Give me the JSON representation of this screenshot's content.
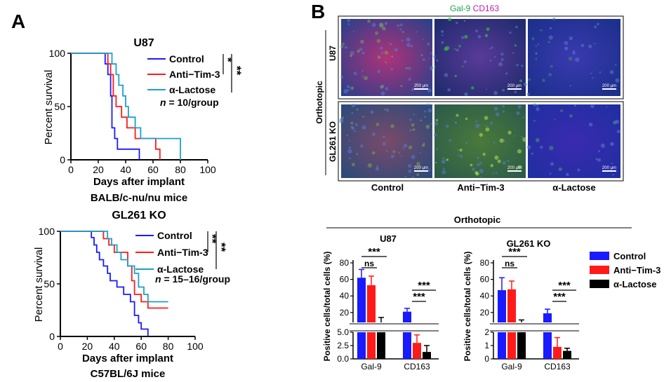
{
  "panel_a": {
    "label": "A",
    "chart_top": {
      "title": "U87",
      "ylabel": "Percent survival",
      "xlabel": "Days after implant",
      "subtitle": "BALB/c-nu/nu mice",
      "note_n": "n",
      "note_rest": " = 10/group",
      "sig1": "*",
      "sig2": "**"
    },
    "chart_bottom": {
      "title": "GL261 KO",
      "ylabel": "Percent survival",
      "xlabel": "Days after implant",
      "subtitle": "C57BL/6J mice",
      "note_n": "n",
      "note_rest": " = 15–16/group",
      "sig1": "**",
      "sig2": "**"
    }
  },
  "panel_b": {
    "label": "B",
    "stain_gal9": "Gal-9",
    "stain_cd163": "CD163",
    "side_label": "Orthotopic",
    "row_labels": [
      "U87",
      "GL261 KO"
    ],
    "col_labels": [
      "Control",
      "Anti−Tim-3",
      "α-Lactose"
    ],
    "scale_bar": "200 μm",
    "bar_section_title": "Orthotopic",
    "bar_ylabel": "Positive cells/total cells (%)",
    "sig_ns": "ns",
    "sig_three": "***"
  },
  "colors": {
    "control": "#1a1aff",
    "anti_tim3": "#ff1a1a",
    "alpha_lactose": "#1aa0d0",
    "black": "#000000"
  },
  "chart_data": [
    {
      "type": "line",
      "title": "U87",
      "xlabel": "Days after implant",
      "ylabel": "Percent survival",
      "xlim": [
        0,
        100
      ],
      "ylim": [
        0,
        100
      ],
      "xticks": [
        0,
        20,
        40,
        60,
        80,
        100
      ],
      "yticks": [
        0,
        50,
        100
      ],
      "series": [
        {
          "name": "Control",
          "x": [
            0,
            25,
            25,
            27,
            27,
            29,
            29,
            30,
            30,
            32,
            32,
            34,
            34,
            50,
            50
          ],
          "y": [
            100,
            100,
            90,
            90,
            80,
            80,
            60,
            60,
            30,
            30,
            20,
            20,
            10,
            10,
            0
          ]
        },
        {
          "name": "Anti−Tim-3",
          "x": [
            0,
            27,
            27,
            29,
            29,
            31,
            31,
            33,
            33,
            37,
            37,
            41,
            41,
            47,
            47,
            62,
            62,
            65,
            65
          ],
          "y": [
            100,
            100,
            90,
            90,
            80,
            80,
            60,
            60,
            50,
            50,
            40,
            40,
            30,
            30,
            20,
            20,
            10,
            10,
            0
          ]
        },
        {
          "name": "α-Lactose",
          "x": [
            0,
            30,
            30,
            33,
            33,
            35,
            35,
            38,
            38,
            40,
            40,
            42,
            42,
            47,
            47,
            51,
            51,
            80,
            80
          ],
          "y": [
            100,
            100,
            90,
            90,
            80,
            80,
            70,
            70,
            60,
            60,
            50,
            50,
            40,
            40,
            30,
            30,
            20,
            20,
            0
          ]
        }
      ]
    },
    {
      "type": "line",
      "title": "GL261 KO",
      "xlabel": "Days after implant",
      "ylabel": "Percent survival",
      "xlim": [
        0,
        100
      ],
      "ylim": [
        0,
        100
      ],
      "xticks": [
        0,
        20,
        40,
        60,
        80,
        100
      ],
      "yticks": [
        0,
        50,
        100
      ],
      "series": [
        {
          "name": "Control",
          "x": [
            0,
            23,
            23,
            25,
            25,
            27,
            27,
            29,
            29,
            32,
            32,
            35,
            35,
            37,
            37,
            42,
            42,
            47,
            47,
            52,
            52,
            55,
            55,
            58,
            58,
            60,
            60,
            65,
            65
          ],
          "y": [
            100,
            100,
            94,
            94,
            87,
            87,
            80,
            80,
            73,
            73,
            67,
            67,
            60,
            60,
            53,
            53,
            47,
            47,
            40,
            40,
            33,
            33,
            20,
            20,
            13,
            13,
            7,
            7,
            0
          ]
        },
        {
          "name": "Anti−Tim-3",
          "x": [
            0,
            32,
            32,
            36,
            36,
            40,
            40,
            50,
            50,
            53,
            53,
            55,
            55,
            60,
            60,
            65,
            65,
            80
          ],
          "y": [
            100,
            100,
            93,
            93,
            87,
            87,
            80,
            80,
            67,
            67,
            53,
            53,
            40,
            40,
            33,
            33,
            27,
            27
          ]
        },
        {
          "name": "α-Lactose",
          "x": [
            0,
            35,
            35,
            38,
            38,
            42,
            42,
            45,
            45,
            50,
            50,
            55,
            55,
            58,
            58,
            62,
            62,
            65,
            65,
            80
          ],
          "y": [
            100,
            100,
            93,
            93,
            87,
            87,
            80,
            80,
            73,
            73,
            67,
            67,
            60,
            60,
            47,
            47,
            40,
            40,
            33,
            33
          ]
        }
      ]
    },
    {
      "type": "bar",
      "title": "U87",
      "ylabel": "Positive cells/total cells (%)",
      "categories": [
        "Gal-9",
        "CD163"
      ],
      "y_upper_ticks": [
        20,
        40,
        60,
        80
      ],
      "y_lower_ticks": [
        0.0,
        2.5,
        5.0
      ],
      "series": [
        {
          "name": "Control",
          "values": [
            62,
            21
          ],
          "errors": [
            10,
            4
          ]
        },
        {
          "name": "Anti−Tim-3",
          "values": [
            53,
            3
          ],
          "errors": [
            11,
            1.5
          ]
        },
        {
          "name": "α-Lactose",
          "values": [
            6,
            1.3
          ],
          "errors": [
            8,
            1.2
          ]
        }
      ]
    },
    {
      "type": "bar",
      "title": "GL261 KO",
      "ylabel": "Positive cells/total cells (%)",
      "categories": [
        "Gal-9",
        "CD163"
      ],
      "y_upper_ticks": [
        20,
        40,
        60,
        80
      ],
      "y_lower_ticks": [
        0,
        1,
        2
      ],
      "series": [
        {
          "name": "Control",
          "values": [
            47,
            19
          ],
          "errors": [
            15,
            5
          ]
        },
        {
          "name": "Anti−Tim-3",
          "values": [
            48,
            0.9
          ],
          "errors": [
            10,
            0.7
          ]
        },
        {
          "name": "α-Lactose",
          "values": [
            6,
            0.6
          ],
          "errors": [
            5,
            0.2
          ]
        }
      ]
    }
  ]
}
